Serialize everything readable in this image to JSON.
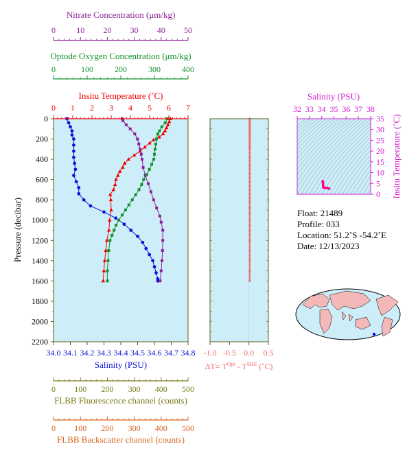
{
  "colors": {
    "panel_bg": "#cdeef8",
    "nitrate": "#8e1f98",
    "oxygen": "#11922a",
    "temperature": "#f00000",
    "salinity": "#0b14d6",
    "delta": "#f06a6a",
    "fluorescence": "#7a7a18",
    "backscatter": "#d8621b",
    "ts_axis": "#d21fcf",
    "frame": "#5c5c10"
  },
  "info": {
    "float": "Float:  21489",
    "profile": "Profile:  033",
    "location": "Location:  51.2˚S  -54.2˚E",
    "date": "Date:  12/13/2023"
  },
  "chart_data": [
    {
      "type": "line",
      "pressure_axis": {
        "label": "Pressure (decibar)",
        "range": [
          0,
          2200
        ],
        "ticks": [
          "0",
          "200",
          "400",
          "600",
          "800",
          "1000",
          "1200",
          "1400",
          "1600",
          "1800",
          "2000",
          "2200"
        ]
      },
      "axes": {
        "nitrate": {
          "label": "Nitrate Concentration (μm/kg)",
          "range": [
            0,
            50
          ],
          "ticks": [
            "0",
            "10",
            "20",
            "30",
            "40",
            "50"
          ]
        },
        "oxygen": {
          "label": "Optode Oxygen Concentration (μm/kg)",
          "range": [
            0,
            400
          ],
          "ticks": [
            "0",
            "100",
            "200",
            "300",
            "400"
          ]
        },
        "temperature": {
          "label": "Insitu Temperature (˚C)",
          "range": [
            0,
            7
          ],
          "ticks": [
            "0",
            "1",
            "2",
            "3",
            "4",
            "5",
            "6",
            "7"
          ]
        },
        "salinity": {
          "label": "Salinity (PSU)",
          "range": [
            34.0,
            34.8
          ],
          "ticks": [
            "34.0",
            "34.1",
            "34.2",
            "34.3",
            "34.4",
            "34.5",
            "34.6",
            "34.7",
            "34.8"
          ]
        },
        "fluorescence": {
          "label": "FLBB Fluorescence channel (counts)",
          "range": [
            0,
            500
          ],
          "ticks": [
            "0",
            "100",
            "200",
            "300",
            "400",
            "500"
          ]
        },
        "backscatter": {
          "label": "FLBB Backscatter channel (counts)",
          "range": [
            0,
            500
          ],
          "ticks": [
            "0",
            "100",
            "200",
            "300",
            "400",
            "500"
          ]
        }
      },
      "series": [
        {
          "key": "temperature",
          "name": "Insitu Temperature (˚C)",
          "marker": "triangle",
          "points": [
            [
              6.08,
              0
            ],
            [
              6.02,
              30
            ],
            [
              5.95,
              60
            ],
            [
              5.88,
              90
            ],
            [
              5.8,
              120
            ],
            [
              5.7,
              150
            ],
            [
              5.5,
              180
            ],
            [
              5.2,
              210
            ],
            [
              5.0,
              240
            ],
            [
              4.75,
              280
            ],
            [
              4.5,
              320
            ],
            [
              4.2,
              360
            ],
            [
              3.9,
              400
            ],
            [
              3.7,
              440
            ],
            [
              3.6,
              480
            ],
            [
              3.45,
              520
            ],
            [
              3.35,
              560
            ],
            [
              3.25,
              600
            ],
            [
              3.2,
              650
            ],
            [
              3.12,
              700
            ],
            [
              2.95,
              750
            ],
            [
              2.98,
              800
            ],
            [
              3.0,
              900
            ],
            [
              2.92,
              1000
            ],
            [
              2.88,
              1100
            ],
            [
              2.78,
              1200
            ],
            [
              2.72,
              1300
            ],
            [
              2.66,
              1400
            ],
            [
              2.62,
              1500
            ],
            [
              2.58,
              1600
            ]
          ]
        },
        {
          "key": "salinity",
          "name": "Salinity (PSU)",
          "marker": "circle",
          "points": [
            [
              34.08,
              0
            ],
            [
              34.09,
              40
            ],
            [
              34.1,
              80
            ],
            [
              34.11,
              120
            ],
            [
              34.11,
              160
            ],
            [
              34.12,
              200
            ],
            [
              34.12,
              260
            ],
            [
              34.12,
              320
            ],
            [
              34.12,
              380
            ],
            [
              34.125,
              440
            ],
            [
              34.13,
              500
            ],
            [
              34.12,
              560
            ],
            [
              34.135,
              620
            ],
            [
              34.15,
              680
            ],
            [
              34.15,
              740
            ],
            [
              34.18,
              800
            ],
            [
              34.22,
              860
            ],
            [
              34.3,
              920
            ],
            [
              34.37,
              980
            ],
            [
              34.42,
              1040
            ],
            [
              34.46,
              1100
            ],
            [
              34.5,
              1160
            ],
            [
              34.53,
              1220
            ],
            [
              34.55,
              1280
            ],
            [
              34.57,
              1340
            ],
            [
              34.59,
              1400
            ],
            [
              34.6,
              1460
            ],
            [
              34.61,
              1520
            ],
            [
              34.62,
              1580
            ],
            [
              34.62,
              1600
            ]
          ]
        },
        {
          "key": "nitrate",
          "name": "Nitrate Concentration (μm/kg)",
          "marker": "square",
          "points": [
            [
              25.5,
              0
            ],
            [
              25.8,
              20
            ],
            [
              27.0,
              60
            ],
            [
              28.5,
              100
            ],
            [
              30.2,
              150
            ],
            [
              31.2,
              200
            ],
            [
              31.7,
              250
            ],
            [
              32.2,
              300
            ],
            [
              32.6,
              350
            ],
            [
              32.9,
              400
            ],
            [
              33.3,
              480
            ],
            [
              34.1,
              560
            ],
            [
              35.2,
              640
            ],
            [
              36.2,
              720
            ],
            [
              37.2,
              800
            ],
            [
              38.3,
              880
            ],
            [
              39.5,
              960
            ],
            [
              40.0,
              1020
            ],
            [
              40.6,
              1100
            ],
            [
              40.6,
              1200
            ],
            [
              40.5,
              1300
            ],
            [
              40.3,
              1400
            ],
            [
              40.0,
              1500
            ],
            [
              39.6,
              1600
            ]
          ]
        },
        {
          "key": "oxygen",
          "name": "Optode Oxygen Concentration (μm/kg)",
          "marker": "square",
          "points": [
            [
              338,
              0
            ],
            [
              332,
              40
            ],
            [
              322,
              80
            ],
            [
              315,
              120
            ],
            [
              310,
              150
            ],
            [
              306,
              200
            ],
            [
              304,
              250
            ],
            [
              302,
              300
            ],
            [
              300,
              350
            ],
            [
              298,
              400
            ],
            [
              292,
              450
            ],
            [
              285,
              500
            ],
            [
              277,
              550
            ],
            [
              268,
              600
            ],
            [
              262,
              650
            ],
            [
              254,
              700
            ],
            [
              244,
              750
            ],
            [
              234,
              800
            ],
            [
              224,
              850
            ],
            [
              214,
              900
            ],
            [
              204,
              950
            ],
            [
              194,
              1000
            ],
            [
              186,
              1050
            ],
            [
              180,
              1100
            ],
            [
              174,
              1150
            ],
            [
              168,
              1200
            ],
            [
              164,
              1300
            ],
            [
              162,
              1400
            ],
            [
              160,
              1500
            ],
            [
              160,
              1600
            ]
          ]
        }
      ]
    },
    {
      "type": "scatter",
      "xlabel": "ΔT= T^Opt - T^SBE (˚C)",
      "xlabel_parts": [
        "ΔT= T",
        "Opt",
        " - T",
        "SBE",
        " (˚C)"
      ],
      "xlim": [
        -1.0,
        0.5
      ],
      "ticks": [
        "-1.0",
        "-0.5",
        "0.0",
        "0.5"
      ],
      "points": [
        [
          0.02,
          0
        ],
        [
          0.02,
          20
        ],
        [
          0.02,
          40
        ],
        [
          0.02,
          60
        ],
        [
          0.02,
          80
        ],
        [
          0.02,
          100
        ],
        [
          0.02,
          120
        ],
        [
          0.02,
          140
        ],
        [
          0.02,
          160
        ],
        [
          0.02,
          180
        ],
        [
          0.02,
          200
        ],
        [
          0.02,
          220
        ],
        [
          0.02,
          240
        ],
        [
          0.02,
          260
        ],
        [
          0.02,
          280
        ],
        [
          0.02,
          300
        ],
        [
          0.02,
          340
        ],
        [
          0.02,
          380
        ],
        [
          0.02,
          420
        ],
        [
          0.02,
          460
        ],
        [
          0.02,
          500
        ],
        [
          0.02,
          540
        ],
        [
          0.02,
          580
        ],
        [
          0.02,
          620
        ],
        [
          0.02,
          660
        ],
        [
          0.02,
          700
        ],
        [
          0.02,
          740
        ],
        [
          0.02,
          780
        ],
        [
          0.02,
          820
        ],
        [
          0.02,
          880
        ],
        [
          0.02,
          940
        ],
        [
          0.02,
          1000
        ],
        [
          0.02,
          1050
        ],
        [
          0.02,
          1100
        ],
        [
          0.02,
          1150
        ],
        [
          0.02,
          1200
        ],
        [
          0.02,
          1300
        ],
        [
          0.02,
          1400
        ],
        [
          0.02,
          1500
        ],
        [
          0.02,
          1600
        ]
      ]
    },
    {
      "type": "scatter",
      "xlabel": "Salinity (PSU)",
      "ylabel": "Insitu Temperature (˚C)",
      "xlim": [
        32,
        38
      ],
      "ylim": [
        0,
        35
      ],
      "xticks": [
        "32",
        "33",
        "34",
        "35",
        "36",
        "37",
        "38"
      ],
      "yticks": [
        "0",
        "5",
        "10",
        "15",
        "20",
        "25",
        "30",
        "35"
      ],
      "points": [
        [
          34.08,
          6.1
        ],
        [
          34.09,
          5.9
        ],
        [
          34.1,
          5.5
        ],
        [
          34.11,
          5.0
        ],
        [
          34.12,
          4.3
        ],
        [
          34.12,
          3.7
        ],
        [
          34.13,
          3.3
        ],
        [
          34.14,
          3.1
        ],
        [
          34.18,
          3.0
        ],
        [
          34.3,
          3.0
        ],
        [
          34.45,
          2.9
        ],
        [
          34.55,
          2.7
        ],
        [
          34.62,
          2.6
        ]
      ]
    }
  ]
}
